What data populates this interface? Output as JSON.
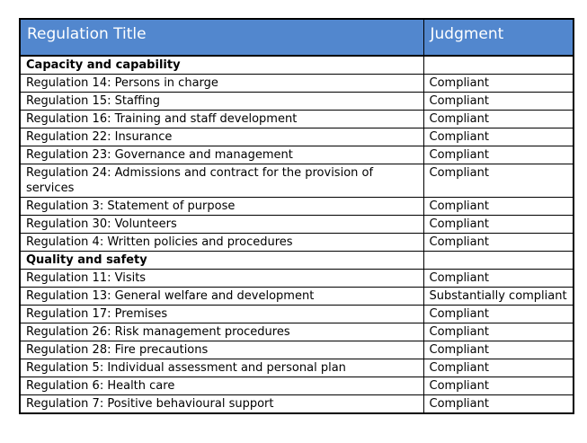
{
  "colors": {
    "header_bg": "#5287CE",
    "header_text": "#ffffff",
    "border": "#000000",
    "body_text": "#000000"
  },
  "table": {
    "headers": [
      "Regulation Title",
      "Judgment"
    ],
    "rows": [
      {
        "type": "section",
        "title": "Capacity and capability",
        "judgment": ""
      },
      {
        "type": "item",
        "title": "Regulation 14: Persons in charge",
        "judgment": "Compliant"
      },
      {
        "type": "item",
        "title": "Regulation 15: Staffing",
        "judgment": "Compliant"
      },
      {
        "type": "item",
        "title": "Regulation 16: Training and staff development",
        "judgment": "Compliant"
      },
      {
        "type": "item",
        "title": "Regulation 22: Insurance",
        "judgment": "Compliant"
      },
      {
        "type": "item",
        "title": "Regulation 23: Governance and management",
        "judgment": "Compliant"
      },
      {
        "type": "item",
        "title": "Regulation 24: Admissions and contract for the provision of services",
        "judgment": "Compliant"
      },
      {
        "type": "item",
        "title": "Regulation 3: Statement of purpose",
        "judgment": "Compliant"
      },
      {
        "type": "item",
        "title": "Regulation 30: Volunteers",
        "judgment": "Compliant"
      },
      {
        "type": "item",
        "title": "Regulation 4: Written policies and procedures",
        "judgment": "Compliant"
      },
      {
        "type": "section",
        "title": "Quality and safety",
        "judgment": ""
      },
      {
        "type": "item",
        "title": "Regulation 11: Visits",
        "judgment": "Compliant"
      },
      {
        "type": "item",
        "title": "Regulation 13: General welfare and development",
        "judgment": "Substantially compliant"
      },
      {
        "type": "item",
        "title": "Regulation 17: Premises",
        "judgment": "Compliant"
      },
      {
        "type": "item",
        "title": "Regulation 26: Risk management procedures",
        "judgment": "Compliant"
      },
      {
        "type": "item",
        "title": "Regulation 28: Fire precautions",
        "judgment": "Compliant"
      },
      {
        "type": "item",
        "title": "Regulation 5: Individual assessment and personal plan",
        "judgment": "Compliant"
      },
      {
        "type": "item",
        "title": "Regulation 6: Health care",
        "judgment": "Compliant"
      },
      {
        "type": "item",
        "title": "Regulation 7: Positive behavioural support",
        "judgment": "Compliant"
      }
    ]
  }
}
